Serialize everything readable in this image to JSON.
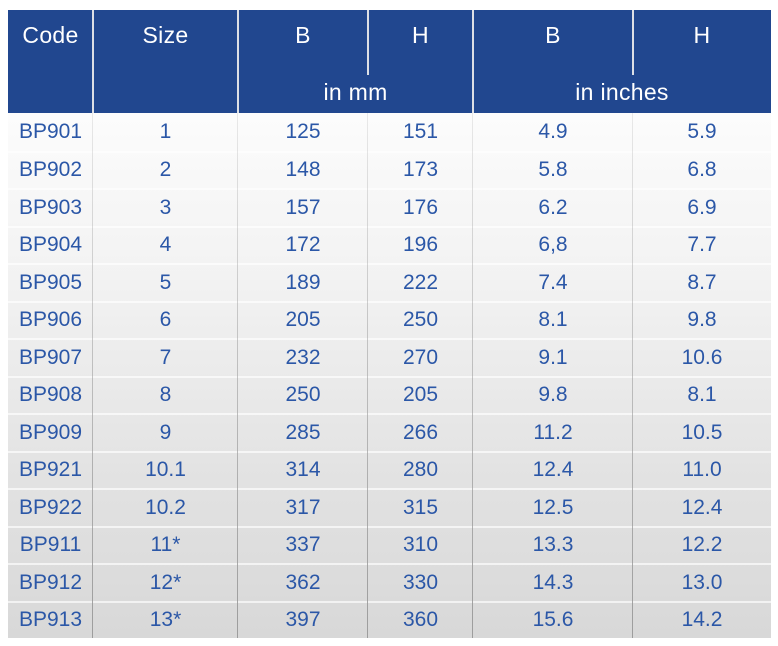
{
  "table": {
    "columns": [
      {
        "label": "Code"
      },
      {
        "label": "Size"
      },
      {
        "label": "B"
      },
      {
        "label": "H"
      },
      {
        "label": "B"
      },
      {
        "label": "H"
      }
    ],
    "unit_groups": [
      {
        "label": "in mm"
      },
      {
        "label": "in inches"
      }
    ],
    "rows": [
      {
        "code": "BP901",
        "size": "1",
        "b_mm": "125",
        "h_mm": "151",
        "b_in": "4.9",
        "h_in": "5.9"
      },
      {
        "code": "BP902",
        "size": "2",
        "b_mm": "148",
        "h_mm": "173",
        "b_in": "5.8",
        "h_in": "6.8"
      },
      {
        "code": "BP903",
        "size": "3",
        "b_mm": "157",
        "h_mm": "176",
        "b_in": "6.2",
        "h_in": "6.9"
      },
      {
        "code": "BP904",
        "size": "4",
        "b_mm": "172",
        "h_mm": "196",
        "b_in": "6,8",
        "h_in": "7.7"
      },
      {
        "code": "BP905",
        "size": "5",
        "b_mm": "189",
        "h_mm": "222",
        "b_in": "7.4",
        "h_in": "8.7"
      },
      {
        "code": "BP906",
        "size": "6",
        "b_mm": "205",
        "h_mm": "250",
        "b_in": "8.1",
        "h_in": "9.8"
      },
      {
        "code": "BP907",
        "size": "7",
        "b_mm": "232",
        "h_mm": "270",
        "b_in": "9.1",
        "h_in": "10.6"
      },
      {
        "code": "BP908",
        "size": "8",
        "b_mm": "250",
        "h_mm": "205",
        "b_in": "9.8",
        "h_in": "8.1"
      },
      {
        "code": "BP909",
        "size": "9",
        "b_mm": "285",
        "h_mm": "266",
        "b_in": "11.2",
        "h_in": "10.5"
      },
      {
        "code": "BP921",
        "size": "10.1",
        "b_mm": "314",
        "h_mm": "280",
        "b_in": "12.4",
        "h_in": "11.0"
      },
      {
        "code": "BP922",
        "size": "10.2",
        "b_mm": "317",
        "h_mm": "315",
        "b_in": "12.5",
        "h_in": "12.4"
      },
      {
        "code": "BP911",
        "size": "11*",
        "b_mm": "337",
        "h_mm": "310",
        "b_in": "13.3",
        "h_in": "12.2"
      },
      {
        "code": "BP912",
        "size": "12*",
        "b_mm": "362",
        "h_mm": "330",
        "b_in": "14.3",
        "h_in": "13.0"
      },
      {
        "code": "BP913",
        "size": "13*",
        "b_mm": "397",
        "h_mm": "360",
        "b_in": "15.6",
        "h_in": "14.2"
      }
    ]
  },
  "colors": {
    "header_background": "#21478f",
    "header_text": "#ffffff",
    "cell_text": "#2b57a7"
  }
}
